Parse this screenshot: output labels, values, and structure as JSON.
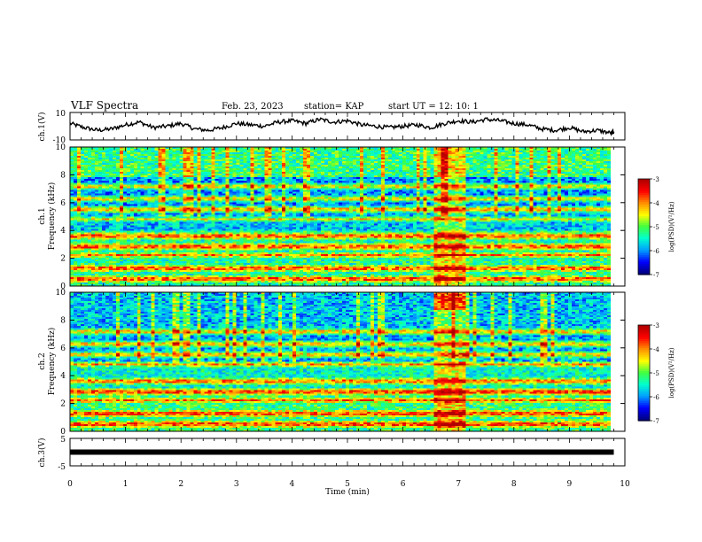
{
  "header": {
    "title": "VLF Spectra",
    "date": "Feb. 23, 2023",
    "station": "station= KAP",
    "start_ut": "start  UT =   12: 10: 1"
  },
  "chart_data": [
    {
      "type": "line",
      "panel": "ch1-waveform",
      "ylabel": "ch.1(V)",
      "ylim": [
        -10,
        10
      ],
      "yticks": [
        "10",
        "-10"
      ],
      "xlim": [
        0,
        10
      ],
      "series": [
        {
          "x": [
            0,
            0.25,
            0.5,
            0.75,
            1,
            1.25,
            1.5,
            1.75,
            2,
            2.25,
            2.5,
            2.75,
            3,
            3.25,
            3.5,
            3.75,
            4,
            4.25,
            4.5,
            4.75,
            5,
            5.25,
            5.5,
            5.75,
            6,
            6.25,
            6.5,
            6.75,
            7,
            7.25,
            7.5,
            7.75,
            8,
            8.25,
            8.5,
            8.75,
            9,
            9.25,
            9.5,
            9.75,
            9.8
          ],
          "values": [
            2,
            -1,
            -3,
            -2,
            1,
            3,
            -1,
            0,
            2,
            -2,
            -3,
            -1,
            2,
            1,
            0,
            3,
            4,
            2,
            5,
            3,
            4,
            1,
            0,
            -1,
            0,
            1,
            -1,
            2,
            4,
            3,
            5,
            4,
            2,
            1,
            -2,
            -3,
            -1,
            -4,
            -3,
            -5,
            -4
          ]
        }
      ]
    },
    {
      "type": "heatmap",
      "panel": "ch1-spectrogram",
      "ylabel_top": "ch.1",
      "ylabel": "Frequency (kHz)",
      "xlim": [
        0,
        10
      ],
      "ylim": [
        0,
        10
      ],
      "yticks": [
        "0",
        "2",
        "4",
        "6",
        "8",
        "10"
      ],
      "colorbar": {
        "label": "log(PSD)(V²/Hz)",
        "range": [
          -7,
          -3
        ],
        "ticks": [
          "-3",
          "-4",
          "-5",
          "-6",
          "-7"
        ]
      }
    },
    {
      "type": "heatmap",
      "panel": "ch2-spectrogram",
      "ylabel_top": "ch.2",
      "ylabel": "Frequency (kHz)",
      "xlim": [
        0,
        10
      ],
      "ylim": [
        0,
        10
      ],
      "yticks": [
        "0",
        "2",
        "4",
        "6",
        "8",
        "10"
      ],
      "colorbar": {
        "label": "log(PSD)(V²/Hz)",
        "range": [
          -7,
          -3
        ],
        "ticks": [
          "-3",
          "-4",
          "-5",
          "-6",
          "-7"
        ]
      }
    },
    {
      "type": "line",
      "panel": "ch3-waveform",
      "ylabel": "ch.3(V)",
      "ylim": [
        -5,
        5
      ],
      "yticks": [
        "5",
        "-5"
      ],
      "xlim": [
        0,
        10
      ],
      "xlabel": "Time (min)",
      "xticks": [
        "0",
        "1",
        "2",
        "3",
        "4",
        "5",
        "6",
        "7",
        "8",
        "9",
        "10"
      ],
      "series": [
        {
          "x": [
            0,
            9.8
          ],
          "values": [
            0,
            0
          ]
        }
      ]
    }
  ],
  "colors": {
    "background": "#ffffff",
    "axes": "#000000",
    "colormap": [
      "#00007f",
      "#0000ff",
      "#00a0ff",
      "#00ffd0",
      "#40ff40",
      "#ffff00",
      "#ff9000",
      "#ff0000",
      "#b00000"
    ]
  }
}
